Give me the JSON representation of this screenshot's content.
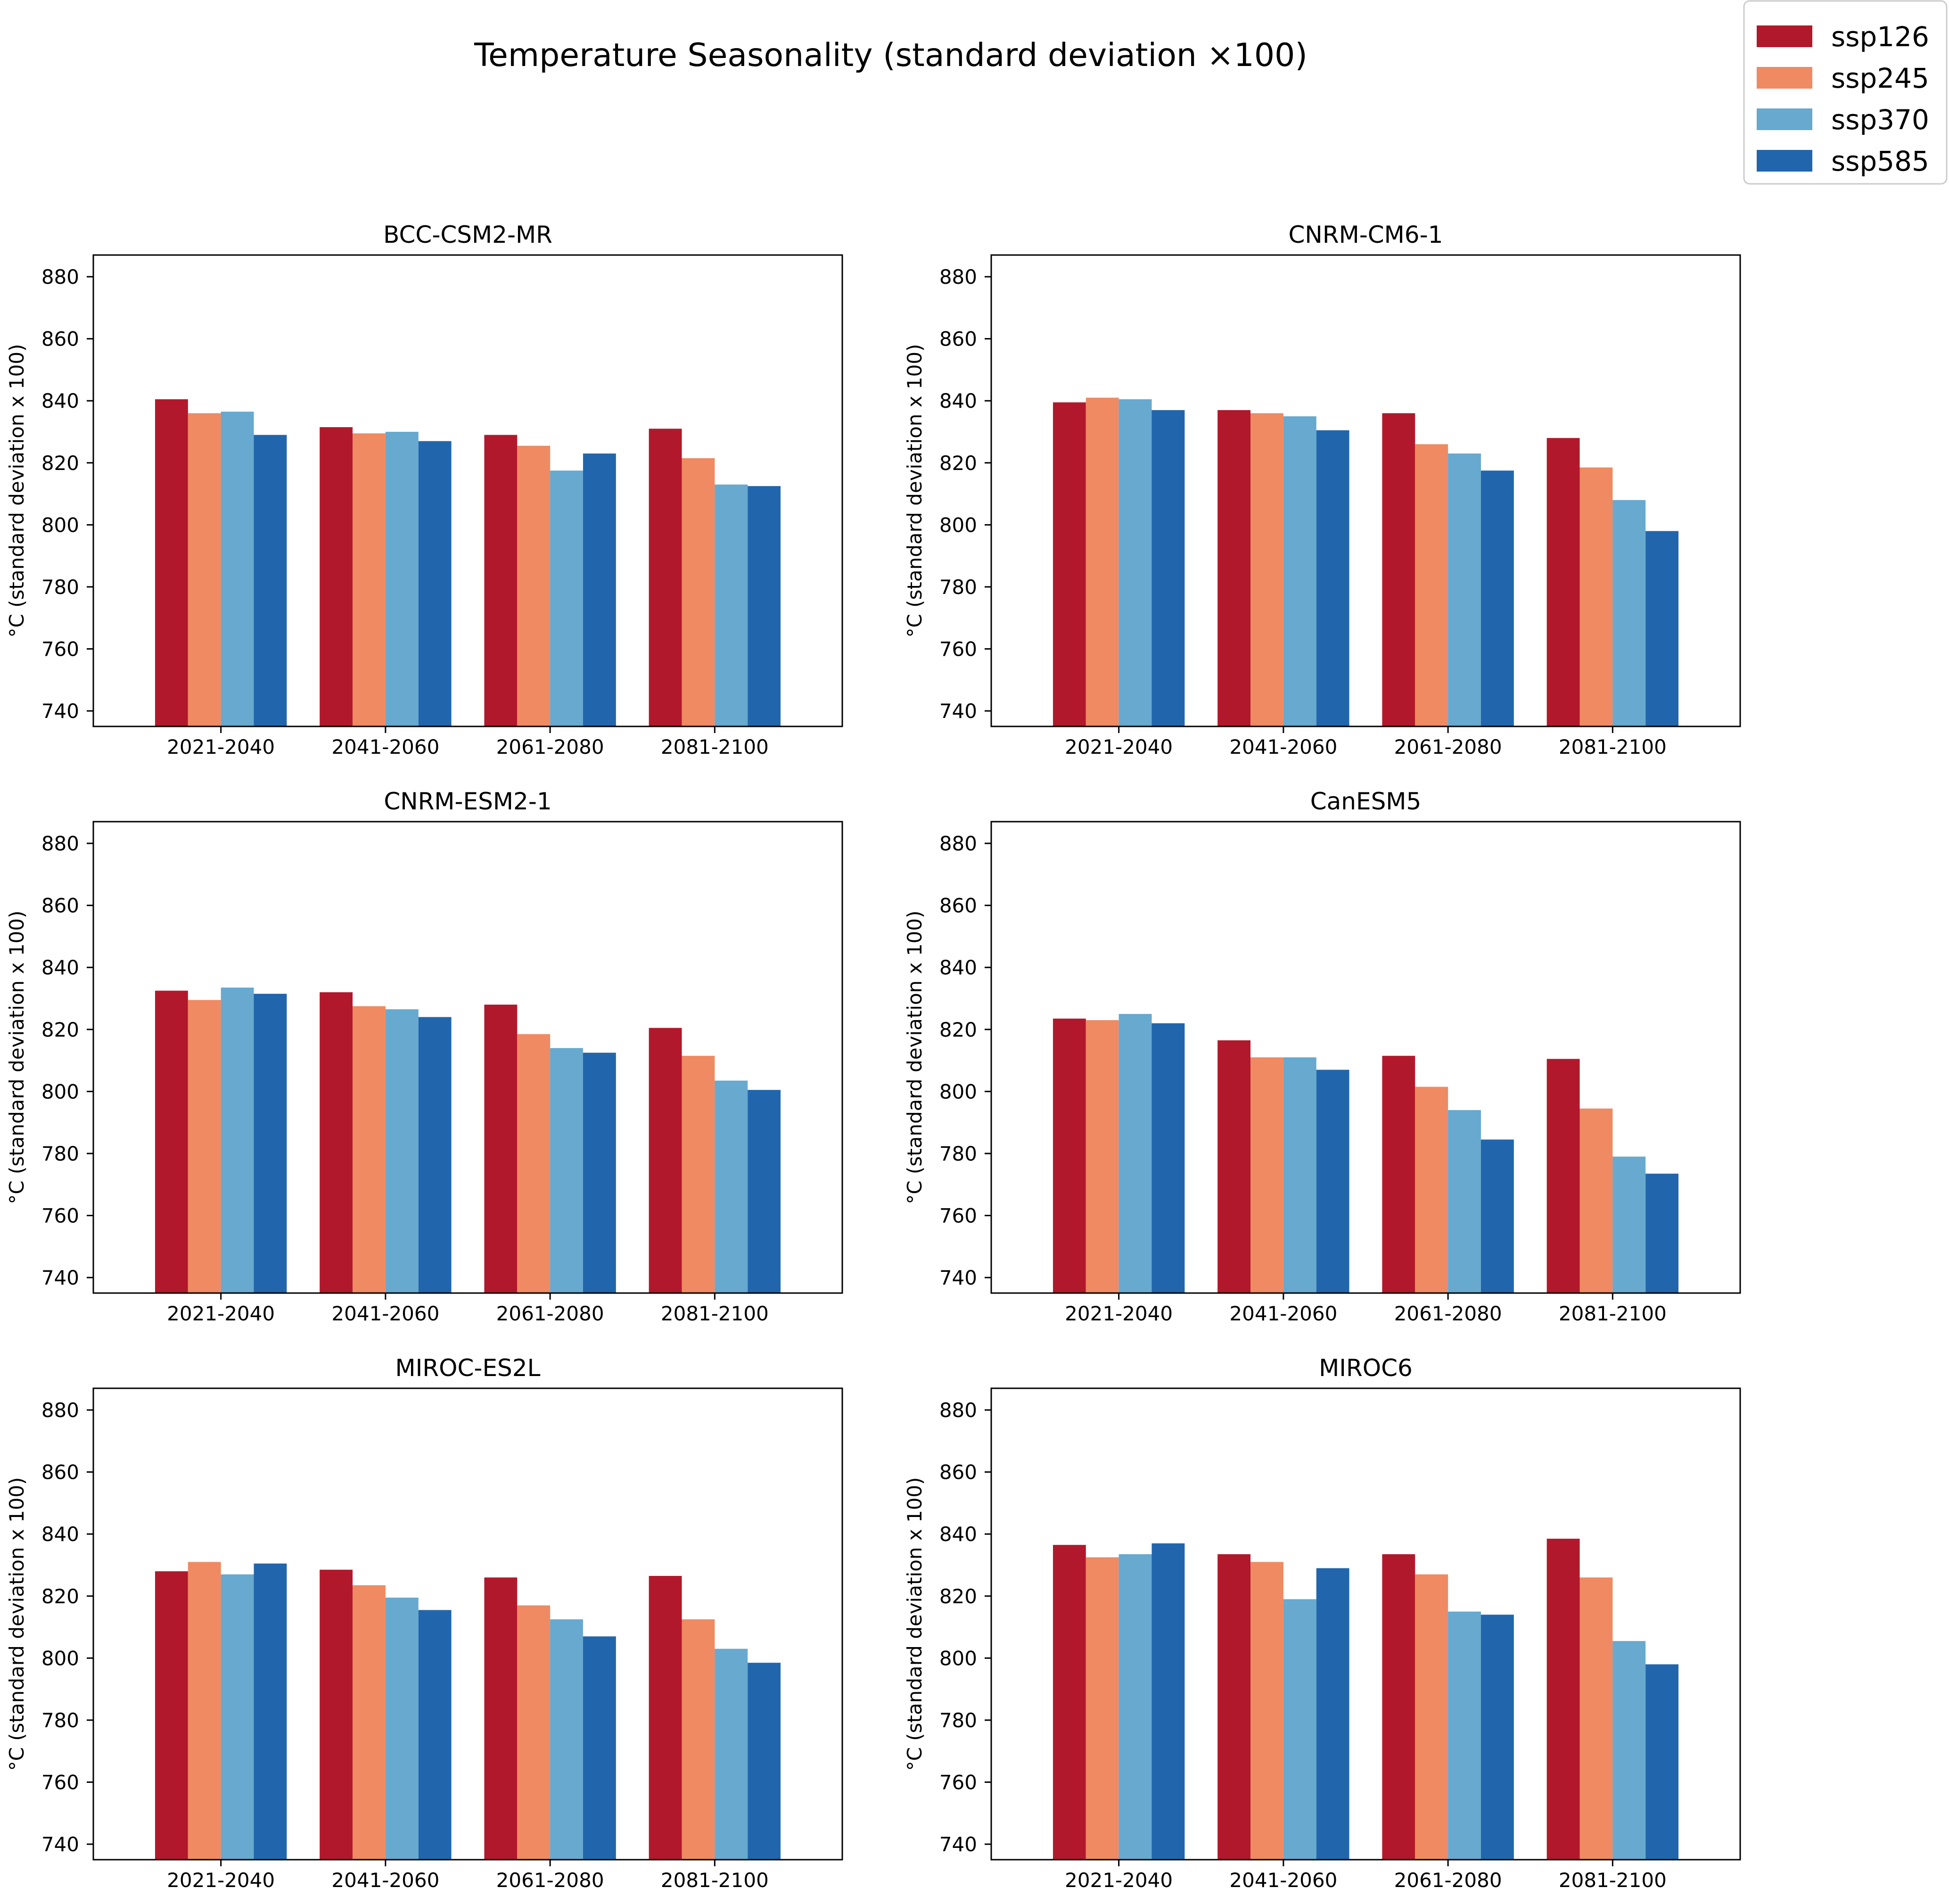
{
  "suptitle": "Temperature Seasonality (standard deviation ×100)",
  "legend": {
    "placement": "top-right",
    "entries": [
      {
        "name": "ssp126",
        "color": "#b2182b"
      },
      {
        "name": "ssp245",
        "color": "#ef8a62"
      },
      {
        "name": "ssp370",
        "color": "#67a9cf"
      },
      {
        "name": "ssp585",
        "color": "#2166ac"
      }
    ]
  },
  "chart_data": [
    {
      "type": "bar",
      "title": "BCC-CSM2-MR",
      "categories": [
        "2021-2040",
        "2041-2060",
        "2061-2080",
        "2081-2100"
      ],
      "ylabel": "°C (standard deviation x 100)",
      "ylim": [
        735,
        887
      ],
      "yticks": [
        740,
        760,
        780,
        800,
        820,
        840,
        860,
        880
      ],
      "grid": false,
      "series": [
        {
          "name": "ssp126",
          "values": [
            840.5,
            831.5,
            829,
            831
          ]
        },
        {
          "name": "ssp245",
          "values": [
            836,
            829.5,
            825.5,
            821.5
          ]
        },
        {
          "name": "ssp370",
          "values": [
            836.5,
            830,
            817.5,
            813
          ]
        },
        {
          "name": "ssp585",
          "values": [
            829,
            827,
            823,
            812.5
          ]
        }
      ]
    },
    {
      "type": "bar",
      "title": "CNRM-CM6-1",
      "categories": [
        "2021-2040",
        "2041-2060",
        "2061-2080",
        "2081-2100"
      ],
      "ylabel": "°C (standard deviation x 100)",
      "ylim": [
        735,
        887
      ],
      "yticks": [
        740,
        760,
        780,
        800,
        820,
        840,
        860,
        880
      ],
      "grid": false,
      "series": [
        {
          "name": "ssp126",
          "values": [
            839.5,
            837,
            836,
            828
          ]
        },
        {
          "name": "ssp245",
          "values": [
            841,
            836,
            826,
            818.5
          ]
        },
        {
          "name": "ssp370",
          "values": [
            840.5,
            835,
            823,
            808
          ]
        },
        {
          "name": "ssp585",
          "values": [
            837,
            830.5,
            817.5,
            798
          ]
        }
      ]
    },
    {
      "type": "bar",
      "title": "CNRM-ESM2-1",
      "categories": [
        "2021-2040",
        "2041-2060",
        "2061-2080",
        "2081-2100"
      ],
      "ylabel": "°C (standard deviation x 100)",
      "ylim": [
        735,
        887
      ],
      "yticks": [
        740,
        760,
        780,
        800,
        820,
        840,
        860,
        880
      ],
      "grid": false,
      "series": [
        {
          "name": "ssp126",
          "values": [
            832.5,
            832,
            828,
            820.5
          ]
        },
        {
          "name": "ssp245",
          "values": [
            829.5,
            827.5,
            818.5,
            811.5
          ]
        },
        {
          "name": "ssp370",
          "values": [
            833.5,
            826.5,
            814,
            803.5
          ]
        },
        {
          "name": "ssp585",
          "values": [
            831.5,
            824,
            812.5,
            800.5
          ]
        }
      ]
    },
    {
      "type": "bar",
      "title": "CanESM5",
      "categories": [
        "2021-2040",
        "2041-2060",
        "2061-2080",
        "2081-2100"
      ],
      "ylabel": "°C (standard deviation x 100)",
      "ylim": [
        735,
        887
      ],
      "yticks": [
        740,
        760,
        780,
        800,
        820,
        840,
        860,
        880
      ],
      "grid": false,
      "series": [
        {
          "name": "ssp126",
          "values": [
            823.5,
            816.5,
            811.5,
            810.5
          ]
        },
        {
          "name": "ssp245",
          "values": [
            823,
            811,
            801.5,
            794.5
          ]
        },
        {
          "name": "ssp370",
          "values": [
            825,
            811,
            794,
            779
          ]
        },
        {
          "name": "ssp585",
          "values": [
            822,
            807,
            784.5,
            773.5
          ]
        }
      ]
    },
    {
      "type": "bar",
      "title": "MIROC-ES2L",
      "categories": [
        "2021-2040",
        "2041-2060",
        "2061-2080",
        "2081-2100"
      ],
      "ylabel": "°C (standard deviation x 100)",
      "ylim": [
        735,
        887
      ],
      "yticks": [
        740,
        760,
        780,
        800,
        820,
        840,
        860,
        880
      ],
      "grid": false,
      "series": [
        {
          "name": "ssp126",
          "values": [
            828,
            828.5,
            826,
            826.5
          ]
        },
        {
          "name": "ssp245",
          "values": [
            831,
            823.5,
            817,
            812.5
          ]
        },
        {
          "name": "ssp370",
          "values": [
            827,
            819.5,
            812.5,
            803
          ]
        },
        {
          "name": "ssp585",
          "values": [
            830.5,
            815.5,
            807,
            798.5
          ]
        }
      ]
    },
    {
      "type": "bar",
      "title": "MIROC6",
      "categories": [
        "2021-2040",
        "2041-2060",
        "2061-2080",
        "2081-2100"
      ],
      "ylabel": "°C (standard deviation x 100)",
      "ylim": [
        735,
        887
      ],
      "yticks": [
        740,
        760,
        780,
        800,
        820,
        840,
        860,
        880
      ],
      "grid": false,
      "series": [
        {
          "name": "ssp126",
          "values": [
            836.5,
            833.5,
            833.5,
            838.5
          ]
        },
        {
          "name": "ssp245",
          "values": [
            832.5,
            831,
            827,
            826
          ]
        },
        {
          "name": "ssp370",
          "values": [
            833.5,
            819,
            815,
            805.5
          ]
        },
        {
          "name": "ssp585",
          "values": [
            837,
            829,
            814,
            798
          ]
        }
      ]
    }
  ]
}
